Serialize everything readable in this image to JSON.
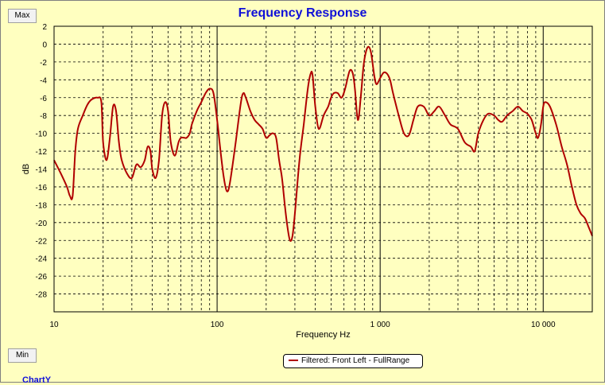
{
  "buttons": {
    "max_label": "Max",
    "min_label": "Min"
  },
  "footer": {
    "label": "ChartY"
  },
  "colors": {
    "background": "#ffffc0",
    "curve": "#b00000",
    "title": "#1010d8",
    "grid": "#000000"
  },
  "chart_data": {
    "type": "line",
    "title": "Frequency Response",
    "xlabel": "Frequency Hz",
    "ylabel": "dB",
    "x_scale": "log",
    "xlim": [
      10,
      20000
    ],
    "ylim": [
      -30,
      2
    ],
    "x_tick_labels": [
      {
        "value": 10,
        "label": "10"
      },
      {
        "value": 100,
        "label": "100"
      },
      {
        "value": 1000,
        "label": "1 000"
      },
      {
        "value": 10000,
        "label": "10 000"
      }
    ],
    "y_ticks": [
      2,
      0,
      -2,
      -4,
      -6,
      -8,
      -10,
      -12,
      -14,
      -16,
      -18,
      -20,
      -22,
      -24,
      -26,
      -28
    ],
    "grid": true,
    "legend_position": "bottom-center",
    "series": [
      {
        "name": "Filtered: Front Left - FullRange",
        "color": "#b00000",
        "points": [
          [
            10,
            -13
          ],
          [
            11,
            -14.5
          ],
          [
            12,
            -16
          ],
          [
            12.5,
            -17
          ],
          [
            13,
            -17
          ],
          [
            13.5,
            -12
          ],
          [
            14,
            -9.5
          ],
          [
            15,
            -8
          ],
          [
            16,
            -6.8
          ],
          [
            17,
            -6.2
          ],
          [
            18.5,
            -6
          ],
          [
            19.5,
            -6.5
          ],
          [
            20,
            -11
          ],
          [
            21,
            -13
          ],
          [
            22,
            -10.5
          ],
          [
            23,
            -7
          ],
          [
            24,
            -7.5
          ],
          [
            25,
            -11
          ],
          [
            26,
            -13
          ],
          [
            28,
            -14.5
          ],
          [
            30,
            -15
          ],
          [
            32,
            -13.5
          ],
          [
            34,
            -13.8
          ],
          [
            36,
            -13
          ],
          [
            37.5,
            -11.5
          ],
          [
            39,
            -12
          ],
          [
            40,
            -14
          ],
          [
            42,
            -15
          ],
          [
            44,
            -13
          ],
          [
            46,
            -8
          ],
          [
            48,
            -6.5
          ],
          [
            50,
            -7.5
          ],
          [
            52,
            -11
          ],
          [
            55,
            -12.5
          ],
          [
            58,
            -11
          ],
          [
            60,
            -10.5
          ],
          [
            63,
            -10.5
          ],
          [
            65,
            -10.5
          ],
          [
            68,
            -10
          ],
          [
            70,
            -9
          ],
          [
            75,
            -7.5
          ],
          [
            80,
            -6.5
          ],
          [
            85,
            -5.5
          ],
          [
            90,
            -5
          ],
          [
            95,
            -5.5
          ],
          [
            100,
            -8.5
          ],
          [
            105,
            -12
          ],
          [
            110,
            -15
          ],
          [
            115,
            -16.5
          ],
          [
            120,
            -15.5
          ],
          [
            130,
            -11
          ],
          [
            140,
            -6.5
          ],
          [
            145,
            -5.5
          ],
          [
            150,
            -6
          ],
          [
            160,
            -7.5
          ],
          [
            170,
            -8.5
          ],
          [
            180,
            -9
          ],
          [
            190,
            -9.5
          ],
          [
            200,
            -10.5
          ],
          [
            210,
            -10.2
          ],
          [
            220,
            -10
          ],
          [
            230,
            -10.5
          ],
          [
            240,
            -13
          ],
          [
            250,
            -15
          ],
          [
            260,
            -18
          ],
          [
            270,
            -20.5
          ],
          [
            280,
            -22
          ],
          [
            290,
            -21.5
          ],
          [
            300,
            -19
          ],
          [
            320,
            -13
          ],
          [
            340,
            -9
          ],
          [
            360,
            -5
          ],
          [
            375,
            -3.3
          ],
          [
            385,
            -3.5
          ],
          [
            400,
            -7
          ],
          [
            420,
            -9.5
          ],
          [
            450,
            -8
          ],
          [
            480,
            -7
          ],
          [
            500,
            -6
          ],
          [
            520,
            -5.5
          ],
          [
            550,
            -5.5
          ],
          [
            580,
            -6
          ],
          [
            610,
            -5
          ],
          [
            650,
            -3
          ],
          [
            680,
            -3.3
          ],
          [
            700,
            -5
          ],
          [
            730,
            -8.5
          ],
          [
            760,
            -6
          ],
          [
            790,
            -2.5
          ],
          [
            820,
            -0.8
          ],
          [
            850,
            -0.3
          ],
          [
            880,
            -1
          ],
          [
            920,
            -3.5
          ],
          [
            950,
            -4.5
          ],
          [
            1000,
            -3.8
          ],
          [
            1050,
            -3.2
          ],
          [
            1100,
            -3.3
          ],
          [
            1150,
            -4
          ],
          [
            1200,
            -5.5
          ],
          [
            1300,
            -8
          ],
          [
            1400,
            -10
          ],
          [
            1500,
            -10.2
          ],
          [
            1600,
            -8.5
          ],
          [
            1700,
            -7
          ],
          [
            1850,
            -7
          ],
          [
            2000,
            -8
          ],
          [
            2150,
            -7.5
          ],
          [
            2300,
            -7
          ],
          [
            2500,
            -8
          ],
          [
            2700,
            -9
          ],
          [
            3000,
            -9.5
          ],
          [
            3300,
            -11
          ],
          [
            3600,
            -11.5
          ],
          [
            3800,
            -12
          ],
          [
            4000,
            -10
          ],
          [
            4300,
            -8.5
          ],
          [
            4600,
            -7.8
          ],
          [
            5000,
            -8
          ],
          [
            5300,
            -8.5
          ],
          [
            5600,
            -8.7
          ],
          [
            6000,
            -8
          ],
          [
            6500,
            -7.5
          ],
          [
            7000,
            -7
          ],
          [
            7500,
            -7.5
          ],
          [
            8000,
            -7.8
          ],
          [
            8500,
            -8.5
          ],
          [
            9000,
            -10
          ],
          [
            9300,
            -10.5
          ],
          [
            9700,
            -9
          ],
          [
            10000,
            -7
          ],
          [
            10300,
            -6.5
          ],
          [
            11000,
            -7
          ],
          [
            12000,
            -9
          ],
          [
            13000,
            -11.5
          ],
          [
            14000,
            -13.5
          ],
          [
            15000,
            -16
          ],
          [
            16000,
            -18
          ],
          [
            17000,
            -19
          ],
          [
            18000,
            -19.5
          ],
          [
            19000,
            -20.5
          ],
          [
            20000,
            -21.5
          ]
        ]
      }
    ]
  }
}
